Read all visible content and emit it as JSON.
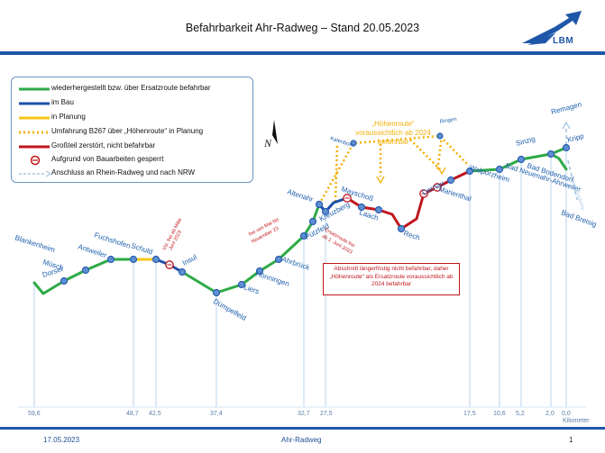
{
  "header": {
    "title": "Befahrbarkeit Ahr-Radweg – Stand 20.05.2023",
    "logo_text": "LBM"
  },
  "legend": [
    {
      "label": "wiederhergestellt bzw. über Ersatzroute befahrbar",
      "style": "green",
      "color": "#2eaa47"
    },
    {
      "label": "im Bau",
      "style": "blue",
      "color": "#1f4fa8"
    },
    {
      "label": "in Planung",
      "style": "yellow",
      "color": "#f5c518"
    },
    {
      "label": "Umfahrung B267 über „Höhenroute“ in Planung",
      "style": "orange-dotted",
      "color": "#f3b10a"
    },
    {
      "label": "Großteil zerstört, nicht befahrbar",
      "style": "red",
      "color": "#c0161c"
    },
    {
      "label": "Aufgrund von Bauarbeiten gesperrt",
      "style": "closed-marker",
      "color": "#c0161c"
    },
    {
      "label": "Anschluss an Rhein-Radweg und nach NRW",
      "style": "light-dashed-arrow",
      "color": "#a9c7e4"
    }
  ],
  "places": [
    "Blankenheim",
    "Dorsel",
    "Müsch",
    "Antweiler",
    "Fuchshofen",
    "Schuld",
    "Insul",
    "Dümpelfeld",
    "Liers",
    "Hönningen",
    "Ahrbrück",
    "Pützfeld",
    "Kreuzberg",
    "Altenahr",
    "Mayschoß",
    "Laach",
    "Rech",
    "Dernau",
    "Marienthal",
    "Walporzheim",
    "Bad Neuenahr-Ahrweiler",
    "Bad Bodendorf",
    "Sinzig",
    "Kripp",
    "Remagen",
    "Bad Breisig"
  ],
  "side_labels": [
    "Kalenborn",
    "Ringen"
  ],
  "compass_label": "N",
  "kilometers": [
    "59,6",
    "48,7",
    "42,5",
    "37,4",
    "32,7",
    "27,5",
    "17,5",
    "10,6",
    "5,2",
    "2,0",
    "0,0"
  ],
  "km_unit": "Kilometer",
  "notes": {
    "hoehenroute": [
      "„Höhenroute“",
      "voraussichtlich ab 2024",
      "befahrbar"
    ],
    "vsl_mitte_juni": [
      "Vsl. frei ab Mitte",
      "Juni 2023"
    ],
    "frei_mai_nov": [
      "frei von Mai bis",
      "November 23"
    ],
    "ersatzroute": [
      "Ersatzroute frei",
      "ab 1. Juni 2023"
    ],
    "abschnitt": "Abschnitt längerfristig nicht befahrbar, daher „Höhenroute“ als Ersatzroute voraussichtlich ab 2024 befahrbar",
    "rhein_radweg": "Rhein-Radweg"
  },
  "footer": {
    "date": "17.05.2023",
    "center": "Ahr-Radweg",
    "page": "1"
  },
  "colors": {
    "green": "#2eaa47",
    "blue": "#1f4fa8",
    "yellow": "#f5c518",
    "orange": "#f3b10a",
    "red": "#c0161c",
    "station": "#3d74c4",
    "dropline": "#a9c7e4"
  }
}
